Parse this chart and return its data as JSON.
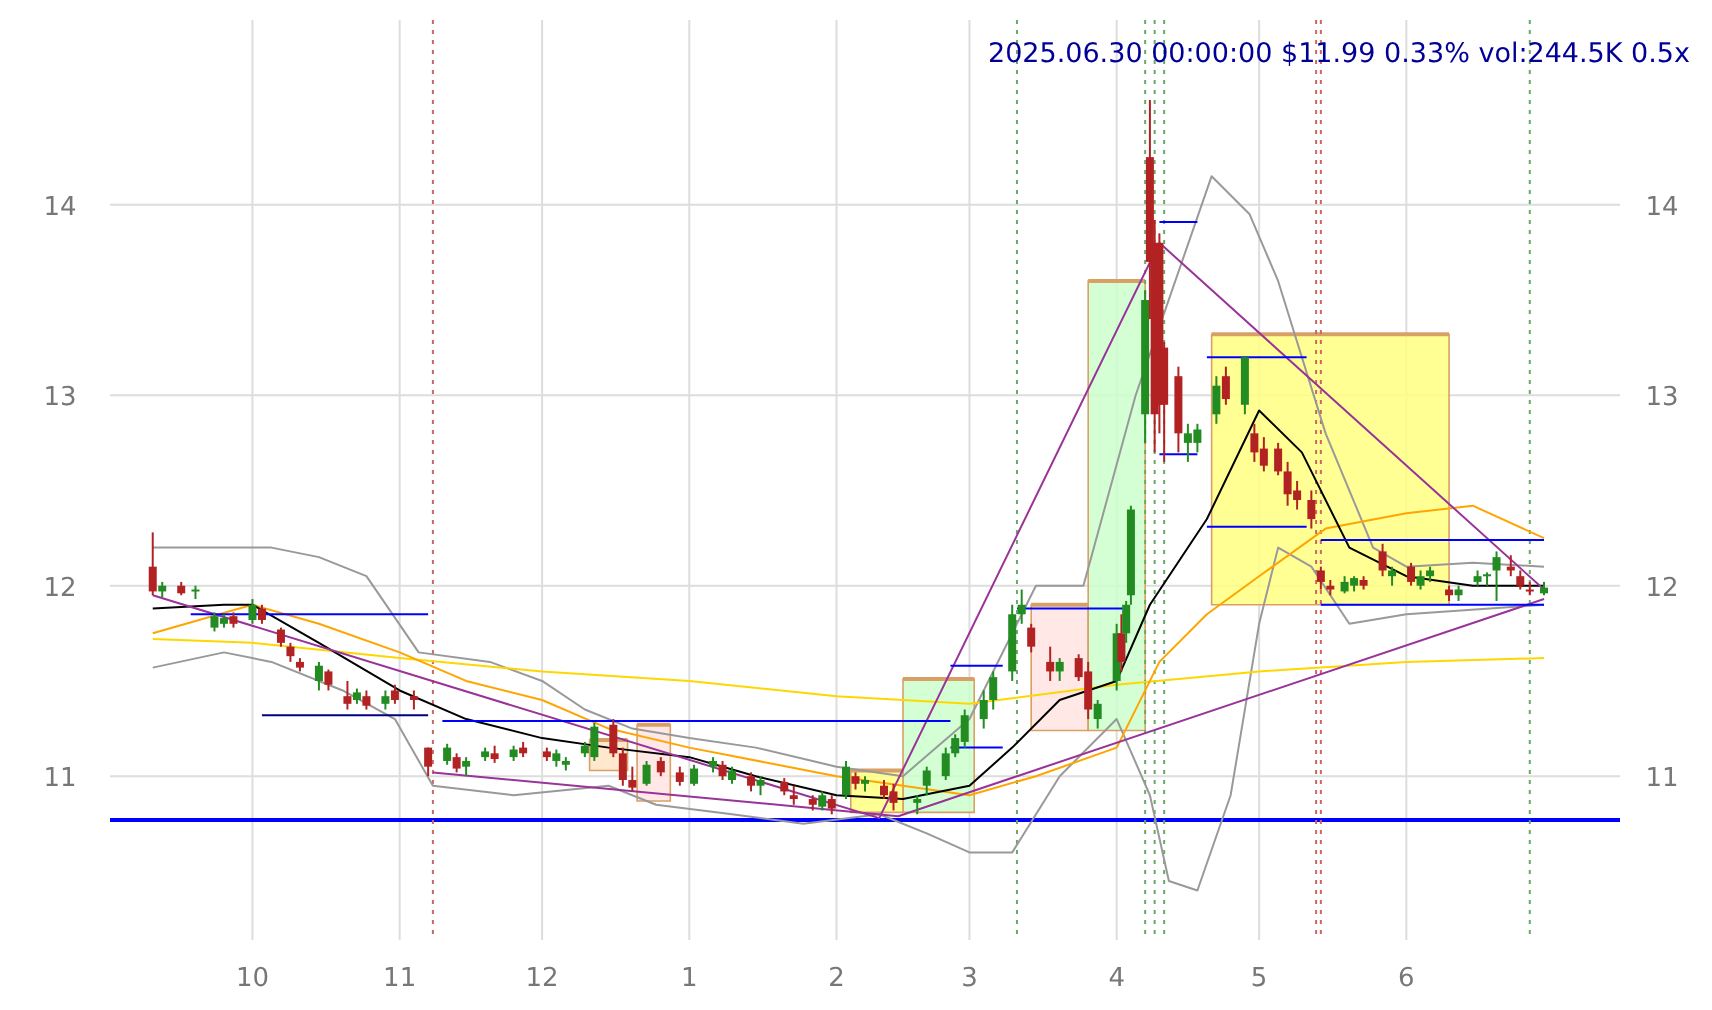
{
  "chart_data": {
    "type": "candlestick",
    "title": "2025.06.30 00:00:00 $11.99 0.33% vol:244.5K 0.5x",
    "xlim": [
      "2024-09-01",
      "2025-07-16"
    ],
    "xticks": [
      {
        "value": "2024-10-01",
        "label": "10"
      },
      {
        "value": "2024-11-01",
        "label": "11"
      },
      {
        "value": "2024-12-01",
        "label": "12"
      },
      {
        "value": "2025-01-01",
        "label": "1"
      },
      {
        "value": "2025-02-01",
        "label": "2"
      },
      {
        "value": "2025-03-01",
        "label": "3"
      },
      {
        "value": "2025-04-01",
        "label": "4"
      },
      {
        "value": "2025-05-01",
        "label": "5"
      },
      {
        "value": "2025-06-01",
        "label": "6"
      }
    ],
    "ylim": [
      10.14,
      14.97
    ],
    "yticks": [
      11,
      12,
      13,
      14
    ],
    "y2lim": [
      10.14,
      14.97
    ],
    "y2ticks": [
      11,
      12,
      13,
      14
    ],
    "grid": true,
    "x": [
      "2024-09-10",
      "2024-09-12",
      "2024-09-16",
      "2024-09-19",
      "2024-09-23",
      "2024-09-25",
      "2024-09-27",
      "2024-10-01",
      "2024-10-03",
      "2024-10-07",
      "2024-10-09",
      "2024-10-11",
      "2024-10-15",
      "2024-10-17",
      "2024-10-21",
      "2024-10-23",
      "2024-10-25",
      "2024-10-29",
      "2024-10-31",
      "2024-11-04",
      "2024-11-07",
      "2024-11-11",
      "2024-11-13",
      "2024-11-15",
      "2024-11-19",
      "2024-11-21",
      "2024-11-25",
      "2024-11-27",
      "2024-12-02",
      "2024-12-04",
      "2024-12-06",
      "2024-12-10",
      "2024-12-12",
      "2024-12-16",
      "2024-12-18",
      "2024-12-20",
      "2024-12-23",
      "2024-12-26",
      "2024-12-30",
      "2025-01-02",
      "2025-01-06",
      "2025-01-08",
      "2025-01-10",
      "2025-01-14",
      "2025-01-16",
      "2025-01-21",
      "2025-01-23",
      "2025-01-27",
      "2025-01-29",
      "2025-01-31",
      "2025-02-03",
      "2025-02-05",
      "2025-02-07",
      "2025-02-11",
      "2025-02-13",
      "2025-02-18",
      "2025-02-20",
      "2025-02-24",
      "2025-02-26",
      "2025-02-28",
      "2025-03-04",
      "2025-03-06",
      "2025-03-10",
      "2025-03-12",
      "2025-03-14",
      "2025-03-18",
      "2025-03-20",
      "2025-03-24",
      "2025-03-26",
      "2025-03-28",
      "2025-04-01",
      "2025-04-02",
      "2025-04-03",
      "2025-04-04",
      "2025-04-07",
      "2025-04-08",
      "2025-04-09",
      "2025-04-10",
      "2025-04-11",
      "2025-04-14",
      "2025-04-16",
      "2025-04-18",
      "2025-04-22",
      "2025-04-24",
      "2025-04-28",
      "2025-04-30",
      "2025-05-02",
      "2025-05-05",
      "2025-05-07",
      "2025-05-09",
      "2025-05-12",
      "2025-05-14",
      "2025-05-16",
      "2025-05-19",
      "2025-05-21",
      "2025-05-23",
      "2025-05-27",
      "2025-05-29",
      "2025-06-02",
      "2025-06-04",
      "2025-06-06",
      "2025-06-10",
      "2025-06-12",
      "2025-06-16",
      "2025-06-18",
      "2025-06-20",
      "2025-06-23",
      "2025-06-25",
      "2025-06-27",
      "2025-06-30"
    ],
    "ohlc": [
      [
        12.1,
        12.28,
        11.95,
        11.97
      ],
      [
        11.97,
        12.02,
        11.94,
        12.0
      ],
      [
        12.0,
        12.02,
        11.95,
        11.96
      ],
      [
        11.97,
        12.0,
        11.93,
        11.98
      ],
      [
        11.78,
        11.86,
        11.76,
        11.84
      ],
      [
        11.8,
        11.85,
        11.78,
        11.83
      ],
      [
        11.84,
        11.86,
        11.78,
        11.8
      ],
      [
        11.82,
        11.93,
        11.8,
        11.9
      ],
      [
        11.88,
        11.9,
        11.8,
        11.82
      ],
      [
        11.77,
        11.78,
        11.68,
        11.7
      ],
      [
        11.68,
        11.7,
        11.6,
        11.63
      ],
      [
        11.6,
        11.62,
        11.55,
        11.57
      ],
      [
        11.5,
        11.6,
        11.45,
        11.58
      ],
      [
        11.55,
        11.56,
        11.45,
        11.48
      ],
      [
        11.42,
        11.5,
        11.35,
        11.38
      ],
      [
        11.4,
        11.46,
        11.38,
        11.44
      ],
      [
        11.42,
        11.45,
        11.35,
        11.37
      ],
      [
        11.38,
        11.45,
        11.35,
        11.42
      ],
      [
        11.45,
        11.48,
        11.38,
        11.4
      ],
      [
        11.42,
        11.45,
        11.35,
        11.4
      ],
      [
        11.15,
        11.15,
        11.0,
        11.05
      ],
      [
        11.08,
        11.17,
        11.06,
        11.15
      ],
      [
        11.1,
        11.12,
        11.02,
        11.04
      ],
      [
        11.05,
        11.1,
        11.0,
        11.08
      ],
      [
        11.1,
        11.15,
        11.08,
        11.13
      ],
      [
        11.12,
        11.16,
        11.07,
        11.09
      ],
      [
        11.1,
        11.16,
        11.08,
        11.14
      ],
      [
        11.15,
        11.18,
        11.1,
        11.12
      ],
      [
        11.13,
        11.15,
        11.08,
        11.1
      ],
      [
        11.08,
        11.14,
        11.05,
        11.12
      ],
      [
        11.06,
        11.1,
        11.03,
        11.08
      ],
      [
        11.12,
        11.18,
        11.1,
        11.16
      ],
      [
        11.1,
        11.28,
        11.08,
        11.26
      ],
      [
        11.27,
        11.3,
        11.1,
        11.12
      ],
      [
        11.12,
        11.15,
        10.95,
        10.98
      ],
      [
        10.98,
        11.05,
        10.92,
        10.94
      ],
      [
        10.96,
        11.08,
        10.95,
        11.06
      ],
      [
        11.08,
        11.1,
        11.0,
        11.02
      ],
      [
        11.02,
        11.05,
        10.95,
        10.97
      ],
      [
        10.96,
        11.06,
        10.95,
        11.04
      ],
      [
        11.05,
        11.1,
        11.02,
        11.08
      ],
      [
        11.06,
        11.08,
        10.98,
        11.0
      ],
      [
        10.98,
        11.05,
        10.96,
        11.03
      ],
      [
        11.0,
        11.02,
        10.92,
        10.95
      ],
      [
        10.95,
        11.0,
        10.9,
        10.98
      ],
      [
        10.97,
        10.99,
        10.9,
        10.92
      ],
      [
        10.9,
        10.95,
        10.85,
        10.88
      ],
      [
        10.88,
        10.9,
        10.82,
        10.85
      ],
      [
        10.84,
        10.92,
        10.82,
        10.9
      ],
      [
        10.88,
        10.9,
        10.8,
        10.83
      ],
      [
        10.9,
        11.08,
        10.88,
        11.05
      ],
      [
        11.0,
        11.02,
        10.93,
        10.96
      ],
      [
        10.96,
        11.0,
        10.92,
        10.98
      ],
      [
        10.95,
        10.98,
        10.88,
        10.9
      ],
      [
        10.92,
        10.96,
        10.82,
        10.86
      ],
      [
        10.86,
        10.9,
        10.8,
        10.88
      ],
      [
        10.95,
        11.05,
        10.9,
        11.03
      ],
      [
        11.0,
        11.15,
        10.98,
        11.12
      ],
      [
        11.12,
        11.22,
        11.1,
        11.2
      ],
      [
        11.18,
        11.35,
        11.15,
        11.32
      ],
      [
        11.3,
        11.45,
        11.25,
        11.4
      ],
      [
        11.4,
        11.55,
        11.35,
        11.52
      ],
      [
        11.55,
        11.9,
        11.5,
        11.85
      ],
      [
        11.85,
        11.98,
        11.8,
        11.9
      ],
      [
        11.78,
        11.8,
        11.65,
        11.68
      ],
      [
        11.6,
        11.68,
        11.5,
        11.55
      ],
      [
        11.55,
        11.62,
        11.5,
        11.6
      ],
      [
        11.62,
        11.64,
        11.5,
        11.52
      ],
      [
        11.55,
        11.6,
        11.3,
        11.35
      ],
      [
        11.3,
        11.4,
        11.25,
        11.38
      ],
      [
        11.5,
        11.8,
        11.45,
        11.75
      ],
      [
        11.75,
        11.85,
        11.55,
        11.6
      ],
      [
        11.75,
        11.92,
        11.7,
        11.9
      ],
      [
        11.95,
        12.42,
        11.9,
        12.4
      ],
      [
        12.9,
        13.55,
        12.75,
        13.5
      ],
      [
        14.25,
        14.55,
        13.4,
        13.7
      ],
      [
        13.8,
        13.92,
        12.7,
        12.9
      ],
      [
        13.8,
        13.85,
        12.8,
        12.95
      ],
      [
        13.25,
        13.28,
        12.65,
        12.95
      ],
      [
        13.1,
        13.15,
        12.7,
        12.8
      ],
      [
        12.75,
        12.85,
        12.65,
        12.8
      ],
      [
        12.75,
        12.85,
        12.7,
        12.82
      ],
      [
        12.9,
        13.1,
        12.85,
        13.05
      ],
      [
        13.1,
        13.15,
        12.95,
        12.98
      ],
      [
        12.95,
        13.2,
        12.9,
        13.2
      ],
      [
        12.8,
        12.85,
        12.65,
        12.7
      ],
      [
        12.72,
        12.78,
        12.6,
        12.63
      ],
      [
        12.72,
        12.75,
        12.58,
        12.6
      ],
      [
        12.6,
        12.65,
        12.42,
        12.48
      ],
      [
        12.5,
        12.55,
        12.4,
        12.45
      ],
      [
        12.45,
        12.5,
        12.3,
        12.35
      ],
      [
        12.08,
        12.1,
        11.98,
        12.02
      ],
      [
        12.0,
        12.03,
        11.95,
        11.98
      ],
      [
        11.97,
        12.05,
        11.96,
        12.02
      ],
      [
        12.0,
        12.05,
        11.97,
        12.04
      ],
      [
        12.03,
        12.05,
        11.98,
        12.0
      ],
      [
        12.18,
        12.22,
        12.05,
        12.08
      ],
      [
        12.05,
        12.1,
        12.0,
        12.08
      ],
      [
        12.1,
        12.12,
        12.0,
        12.02
      ],
      [
        12.0,
        12.08,
        11.98,
        12.05
      ],
      [
        12.05,
        12.1,
        12.02,
        12.08
      ],
      [
        11.98,
        12.0,
        11.92,
        11.95
      ],
      [
        11.95,
        12.0,
        11.92,
        11.98
      ],
      [
        12.02,
        12.08,
        12.0,
        12.05
      ],
      [
        12.05,
        12.07,
        12.0,
        12.06
      ],
      [
        12.08,
        12.18,
        11.92,
        12.15
      ],
      [
        12.1,
        12.16,
        12.05,
        12.08
      ],
      [
        12.05,
        12.08,
        11.98,
        12.0
      ],
      [
        11.98,
        12.02,
        11.95,
        11.97
      ],
      [
        11.96,
        12.02,
        11.95,
        11.99
      ]
    ],
    "series": [
      {
        "type": "line",
        "color": "#d9a066",
        "colors": [
          "#ccffcc",
          "#ccffcc"
        ],
        "x": [
          "2025-02-15",
          "2025-03-02"
        ],
        "values": [
          11.51,
          11.51
        ],
        "lower": [
          10.81,
          10.81
        ],
        "upper": [
          11.51,
          11.51
        ]
      },
      {
        "type": "line",
        "color": "#d9a066",
        "colors": [
          "#ffe4e1",
          "#ffe4e1"
        ],
        "x": [
          "2025-03-14",
          "2025-03-26"
        ],
        "values": [
          11.9,
          11.9
        ],
        "lower": [
          11.24,
          11.24
        ],
        "upper": [
          11.9,
          11.9
        ]
      },
      {
        "type": "line",
        "color": "#d9a066",
        "colors": [
          "#ccffcc",
          "#ccffcc"
        ],
        "x": [
          "2025-03-26",
          "2025-04-07"
        ],
        "values": [
          13.6,
          13.6
        ],
        "lower": [
          11.24,
          11.24
        ],
        "upper": [
          13.6,
          13.6
        ]
      },
      {
        "type": "line",
        "color": "#d9a066",
        "colors": [
          "#ffff80",
          "#ffff80"
        ],
        "x": [
          "2025-04-21",
          "2025-06-10"
        ],
        "values": [
          13.32,
          13.32
        ],
        "lower": [
          11.9,
          11.9
        ],
        "upper": [
          13.32,
          13.32
        ]
      },
      {
        "type": "line",
        "color": "#d9a066",
        "colors": [
          "#ffff80",
          "#ffff80"
        ],
        "x": [
          "2025-02-04",
          "2025-02-15"
        ],
        "values": [
          11.03,
          11.03
        ],
        "lower": [
          10.81,
          10.81
        ],
        "upper": [
          11.03,
          11.03
        ]
      },
      {
        "type": "line",
        "color": "#d9a066",
        "colors": [
          "#ffe4e1",
          "#ffe4e1"
        ],
        "x": [
          "2024-12-21",
          "2024-12-28"
        ],
        "values": [
          11.27,
          11.27
        ],
        "lower": [
          10.87,
          10.87
        ],
        "upper": [
          11.27,
          11.27
        ]
      },
      {
        "type": "line",
        "color": "#d9a066",
        "colors": [
          "#ffe4c4",
          "#ffe4c4"
        ],
        "x": [
          "2024-12-11",
          "2024-12-19"
        ],
        "values": [
          11.19,
          11.19
        ],
        "lower": [
          11.03,
          11.03
        ],
        "upper": [
          11.19,
          11.19
        ]
      },
      {
        "type": "line",
        "color": "#999999",
        "x": [
          "2024-09-10",
          "2024-09-25",
          "2024-10-05",
          "2024-10-15",
          "2024-10-25",
          "2024-11-05",
          "2024-11-20",
          "2024-12-01",
          "2024-12-10",
          "2024-12-20",
          "2025-01-01",
          "2025-01-15",
          "2025-02-01",
          "2025-02-15",
          "2025-03-01",
          "2025-03-15",
          "2025-03-25",
          "2025-04-05",
          "2025-04-21",
          "2025-04-29",
          "2025-05-05",
          "2025-05-15",
          "2025-05-25",
          "2025-06-01",
          "2025-06-15",
          "2025-06-30"
        ],
        "values": [
          12.2,
          12.2,
          12.2,
          12.15,
          12.05,
          11.65,
          11.6,
          11.5,
          11.35,
          11.25,
          11.2,
          11.15,
          11.05,
          11.0,
          11.3,
          12.0,
          12.0,
          13.0,
          14.15,
          13.95,
          13.6,
          12.8,
          12.2,
          12.1,
          12.12,
          12.1
        ]
      },
      {
        "type": "line",
        "color": "#999999",
        "x": [
          "2024-09-10",
          "2024-09-25",
          "2024-10-05",
          "2024-10-20",
          "2024-10-31",
          "2024-11-08",
          "2024-11-25",
          "2024-12-15",
          "2024-12-25",
          "2025-01-10",
          "2025-01-25",
          "2025-02-10",
          "2025-02-20",
          "2025-03-01",
          "2025-03-10",
          "2025-03-20",
          "2025-04-01",
          "2025-04-08",
          "2025-04-12",
          "2025-04-18",
          "2025-04-25",
          "2025-05-01",
          "2025-05-05",
          "2025-05-12",
          "2025-05-20",
          "2025-06-01",
          "2025-06-30"
        ],
        "values": [
          11.57,
          11.65,
          11.6,
          11.45,
          11.3,
          10.95,
          10.9,
          10.95,
          10.85,
          10.8,
          10.75,
          10.8,
          10.7,
          10.6,
          10.6,
          11.0,
          11.3,
          10.9,
          10.45,
          10.4,
          10.9,
          11.8,
          12.2,
          12.1,
          11.8,
          11.85,
          11.9
        ]
      },
      {
        "type": "line",
        "color": "#ffd700",
        "x": [
          "2024-09-10",
          "2024-10-01",
          "2024-11-01",
          "2024-12-01",
          "2025-01-01",
          "2025-02-01",
          "2025-03-01",
          "2025-04-01",
          "2025-05-01",
          "2025-06-01",
          "2025-06-30"
        ],
        "values": [
          11.72,
          11.7,
          11.62,
          11.55,
          11.5,
          11.42,
          11.38,
          11.48,
          11.55,
          11.6,
          11.62
        ]
      },
      {
        "type": "line",
        "color": "#ffa500",
        "x": [
          "2024-09-10",
          "2024-10-01",
          "2024-10-15",
          "2024-11-01",
          "2024-11-15",
          "2024-12-01",
          "2024-12-15",
          "2025-01-01",
          "2025-02-01",
          "2025-02-15",
          "2025-03-01",
          "2025-03-15",
          "2025-04-01",
          "2025-04-10",
          "2025-04-20",
          "2025-05-01",
          "2025-05-15",
          "2025-06-01",
          "2025-06-15",
          "2025-06-30"
        ],
        "values": [
          11.75,
          11.9,
          11.8,
          11.65,
          11.5,
          11.4,
          11.25,
          11.15,
          11.0,
          10.95,
          10.9,
          11.0,
          11.15,
          11.6,
          11.85,
          12.05,
          12.3,
          12.38,
          12.42,
          12.25
        ]
      },
      {
        "type": "line",
        "color": "#000000",
        "x": [
          "2024-09-10",
          "2024-09-25",
          "2024-10-01",
          "2024-10-15",
          "2024-11-01",
          "2024-11-15",
          "2024-12-01",
          "2024-12-15",
          "2025-01-01",
          "2025-01-15",
          "2025-02-01",
          "2025-02-15",
          "2025-03-01",
          "2025-03-10",
          "2025-03-20",
          "2025-04-01",
          "2025-04-08",
          "2025-04-20",
          "2025-05-01",
          "2025-05-10",
          "2025-05-20",
          "2025-06-01",
          "2025-06-15",
          "2025-06-30"
        ],
        "values": [
          11.88,
          11.9,
          11.9,
          11.7,
          11.45,
          11.3,
          11.2,
          11.15,
          11.1,
          11.0,
          10.9,
          10.88,
          10.95,
          11.15,
          11.4,
          11.5,
          11.9,
          12.35,
          12.92,
          12.7,
          12.2,
          12.05,
          12.0,
          12.0
        ]
      },
      {
        "type": "line",
        "color": "#993399",
        "x": [
          "2024-09-10",
          "2025-02-10",
          "2025-04-10",
          "2025-06-30"
        ],
        "values": [
          11.95,
          10.78,
          13.8,
          11.98
        ]
      },
      {
        "type": "line",
        "color": "#993399",
        "x": [
          "2024-11-08",
          "2025-02-14",
          "2025-06-30"
        ],
        "values": [
          11.02,
          10.79,
          11.93
        ]
      },
      {
        "type": "line",
        "color": "#0000ff",
        "x": [
          "2024-09-18",
          "2024-11-07"
        ],
        "values": [
          11.85,
          11.85
        ]
      },
      {
        "type": "line",
        "color": "#000080",
        "x": [
          "2024-10-03",
          "2024-11-07"
        ],
        "values": [
          11.32,
          11.32
        ]
      },
      {
        "type": "line",
        "color": "#0000ff",
        "x": [
          "2024-11-10",
          "2025-02-25"
        ],
        "values": [
          11.29,
          11.29
        ]
      },
      {
        "type": "line",
        "color": "#0000ff",
        "x": [
          "2025-02-25",
          "2025-03-08"
        ],
        "values": [
          11.58,
          11.58
        ]
      },
      {
        "type": "line",
        "color": "#0000ff",
        "x": [
          "2025-02-25",
          "2025-03-08"
        ],
        "values": [
          11.15,
          11.15
        ]
      },
      {
        "type": "line",
        "color": "#0000ff",
        "x": [
          "2025-03-11",
          "2025-04-03"
        ],
        "values": [
          11.88,
          11.88
        ]
      },
      {
        "type": "line",
        "color": "#0000ff",
        "x": [
          "2025-04-10",
          "2025-04-18"
        ],
        "values": [
          13.91,
          13.91
        ]
      },
      {
        "type": "line",
        "color": "#0000ff",
        "x": [
          "2025-04-10",
          "2025-04-18"
        ],
        "values": [
          12.69,
          12.69
        ]
      },
      {
        "type": "line",
        "color": "#0000ff",
        "x": [
          "2025-04-20",
          "2025-05-11"
        ],
        "values": [
          13.2,
          13.2
        ]
      },
      {
        "type": "line",
        "color": "#0000ff",
        "x": [
          "2025-04-20",
          "2025-05-11"
        ],
        "values": [
          12.31,
          12.31
        ]
      },
      {
        "type": "line",
        "color": "#0000ff",
        "x": [
          "2025-05-14",
          "2025-06-30"
        ],
        "values": [
          12.24,
          12.24
        ]
      },
      {
        "type": "line",
        "color": "#0000ff",
        "x": [
          "2025-05-14",
          "2025-06-30"
        ],
        "values": [
          11.9,
          11.9
        ]
      }
    ],
    "ref_lines": [
      {
        "axis": "y",
        "value": 10.77,
        "color": "#0000ff",
        "line_style": "solid"
      },
      {
        "axis": "x",
        "value": "2024-11-08",
        "color": "#cc6666",
        "line_style": "dotted"
      },
      {
        "axis": "x",
        "value": "2025-03-11",
        "color": "#66aa66",
        "line_style": "dotted"
      },
      {
        "axis": "x",
        "value": "2025-04-07",
        "color": "#66aa66",
        "line_style": "dotted"
      },
      {
        "axis": "x",
        "value": "2025-04-09",
        "color": "#66aa66",
        "line_style": "dotted"
      },
      {
        "axis": "x",
        "value": "2025-04-11",
        "color": "#66aa66",
        "line_style": "dotted"
      },
      {
        "axis": "x",
        "value": "2025-05-13",
        "color": "#cc6666",
        "line_style": "dotted"
      },
      {
        "axis": "x",
        "value": "2025-05-14",
        "color": "#cc6666",
        "line_style": "dotted"
      },
      {
        "axis": "x",
        "value": "2025-06-27",
        "color": "#66aa66",
        "line_style": "dotted"
      }
    ]
  }
}
